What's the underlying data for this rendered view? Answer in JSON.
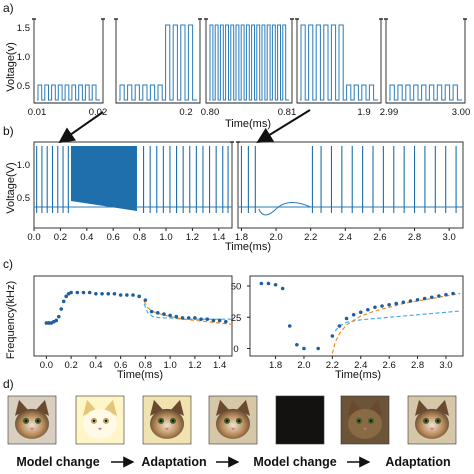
{
  "panel_labels": [
    "a)",
    "b)",
    "c)",
    "d)"
  ],
  "chart_data": [
    {
      "type": "line",
      "id": "a",
      "ylabel": "Voltage(v)",
      "xlabel": "Time(ms)",
      "yticks": [
        "0.5",
        "1.0",
        "1.5"
      ],
      "ylim": [
        0.3,
        1.7
      ],
      "segments": [
        {
          "ticks": [
            "0.01",
            "0.02"
          ],
          "pulse_levels": [
            0.6
          ],
          "pulses": 9
        },
        {
          "ticks": [
            "0.2"
          ],
          "pulse_levels": [
            0.6,
            1.6
          ],
          "pulses": 10
        },
        {
          "ticks": [
            "0.80",
            "0.81"
          ],
          "pulse_levels": [
            1.6
          ],
          "pulses": 15
        },
        {
          "ticks": [
            "1.9"
          ],
          "pulse_levels": [
            1.6,
            0.6
          ],
          "pulses": 10
        },
        {
          "ticks": [
            "2.99",
            "3.00"
          ],
          "pulse_levels": [
            0.6
          ],
          "pulses": 9
        }
      ]
    },
    {
      "type": "line",
      "id": "b",
      "ylabel": "Voltage(V)",
      "xlabel": "Time(ms)",
      "yticks": [
        "0.5",
        "1.0"
      ],
      "left_xticks": [
        "0.0",
        "0.2",
        "0.4",
        "0.6",
        "0.8",
        "1.0",
        "1.2",
        "1.4"
      ],
      "right_xticks": [
        "1.8",
        "2.0",
        "2.2",
        "2.4",
        "2.6",
        "2.8",
        "3.0"
      ],
      "left_range": [
        0.0,
        1.5
      ],
      "right_range": [
        1.78,
        3.08
      ],
      "left_spikes": [
        0.02,
        0.06,
        0.1,
        0.14,
        0.18,
        0.22,
        0.26,
        0.83,
        0.88,
        0.93,
        0.98,
        1.03,
        1.08,
        1.13,
        1.18,
        1.23,
        1.28,
        1.33,
        1.38,
        1.43,
        1.47
      ],
      "dense_burst": [
        0.28,
        0.78
      ],
      "right_spikes": [
        1.8,
        1.84,
        1.88,
        2.21,
        2.26,
        2.32,
        2.38,
        2.44,
        2.5,
        2.56,
        2.62,
        2.68,
        2.74,
        2.8,
        2.86,
        2.92,
        2.98,
        3.04
      ]
    },
    {
      "type": "scatter",
      "id": "c-left",
      "ylabel": "Frequency(kHz)",
      "xlabel": "Time(ms)",
      "xticks": [
        "0.0",
        "0.2",
        "0.4",
        "0.6",
        "0.8",
        "1.0",
        "1.2",
        "1.4"
      ],
      "xlim": [
        -0.1,
        1.5
      ],
      "ylim": [
        -5,
        58
      ],
      "points": [
        [
          0.0,
          21
        ],
        [
          0.02,
          21
        ],
        [
          0.04,
          21
        ],
        [
          0.06,
          22
        ],
        [
          0.08,
          23
        ],
        [
          0.1,
          26
        ],
        [
          0.12,
          32
        ],
        [
          0.14,
          38
        ],
        [
          0.16,
          42
        ],
        [
          0.18,
          44
        ],
        [
          0.2,
          45
        ],
        [
          0.25,
          45
        ],
        [
          0.3,
          45
        ],
        [
          0.35,
          45
        ],
        [
          0.4,
          44
        ],
        [
          0.45,
          44
        ],
        [
          0.5,
          44
        ],
        [
          0.55,
          44
        ],
        [
          0.6,
          43
        ],
        [
          0.65,
          43
        ],
        [
          0.7,
          43
        ],
        [
          0.75,
          42
        ],
        [
          0.8,
          39
        ],
        [
          0.85,
          30
        ],
        [
          0.9,
          29
        ],
        [
          0.95,
          28
        ],
        [
          1.0,
          27
        ],
        [
          1.05,
          26
        ],
        [
          1.1,
          25
        ],
        [
          1.15,
          25
        ],
        [
          1.2,
          25
        ],
        [
          1.25,
          24
        ],
        [
          1.3,
          24
        ],
        [
          1.35,
          23
        ],
        [
          1.4,
          23
        ],
        [
          1.45,
          22
        ]
      ],
      "fit_orange": [
        [
          0.79,
          38
        ],
        [
          0.82,
          33
        ],
        [
          0.86,
          30
        ],
        [
          0.92,
          28
        ],
        [
          1.0,
          26
        ],
        [
          1.1,
          24
        ],
        [
          1.2,
          23
        ],
        [
          1.3,
          22
        ],
        [
          1.4,
          21
        ],
        [
          1.5,
          20
        ]
      ],
      "fit_blue": [
        [
          0.79,
          36
        ],
        [
          0.82,
          29
        ],
        [
          0.86,
          26
        ],
        [
          0.92,
          25
        ],
        [
          1.0,
          25
        ],
        [
          1.1,
          24
        ],
        [
          1.2,
          24
        ],
        [
          1.3,
          24
        ],
        [
          1.4,
          24
        ],
        [
          1.5,
          24
        ]
      ]
    },
    {
      "type": "scatter",
      "id": "c-right",
      "yticks": [
        "0",
        "25",
        "50"
      ],
      "xticks": [
        "1.8",
        "2.0",
        "2.2",
        "2.4",
        "2.6",
        "2.8",
        "3.0"
      ],
      "xlabel": "Time(ms)",
      "xlim": [
        1.62,
        3.12
      ],
      "ylim": [
        -6,
        58
      ],
      "points": [
        [
          1.7,
          52
        ],
        [
          1.75,
          52
        ],
        [
          1.8,
          51
        ],
        [
          1.85,
          48
        ],
        [
          1.9,
          18
        ],
        [
          1.95,
          3
        ],
        [
          2.0,
          0
        ],
        [
          2.1,
          0
        ],
        [
          2.2,
          10
        ],
        [
          2.25,
          18
        ],
        [
          2.3,
          24
        ],
        [
          2.35,
          27
        ],
        [
          2.4,
          29
        ],
        [
          2.45,
          31
        ],
        [
          2.5,
          33
        ],
        [
          2.55,
          34
        ],
        [
          2.6,
          35
        ],
        [
          2.65,
          36
        ],
        [
          2.7,
          37
        ],
        [
          2.75,
          38
        ],
        [
          2.8,
          39
        ],
        [
          2.85,
          40
        ],
        [
          2.9,
          41
        ],
        [
          2.95,
          42
        ],
        [
          3.0,
          43
        ],
        [
          3.05,
          44
        ]
      ],
      "fit_orange": [
        [
          2.2,
          -4
        ],
        [
          2.22,
          5
        ],
        [
          2.25,
          12
        ],
        [
          2.3,
          19
        ],
        [
          2.4,
          26
        ],
        [
          2.5,
          30
        ],
        [
          2.6,
          33
        ],
        [
          2.7,
          36
        ],
        [
          2.8,
          38
        ],
        [
          2.9,
          40
        ],
        [
          3.0,
          42
        ],
        [
          3.1,
          44
        ]
      ],
      "fit_blue": [
        [
          2.22,
          14
        ],
        [
          2.25,
          18
        ],
        [
          2.3,
          21
        ],
        [
          2.4,
          23
        ],
        [
          2.5,
          24
        ],
        [
          2.6,
          25
        ],
        [
          2.7,
          26
        ],
        [
          2.8,
          27
        ],
        [
          2.9,
          28
        ],
        [
          3.0,
          29
        ],
        [
          3.1,
          30
        ]
      ]
    }
  ],
  "panel_d": {
    "tiles": [
      "original",
      "bright",
      "bright-adapted",
      "restored",
      "dark",
      "dark-adapted",
      "restored"
    ],
    "captions": [
      "Model change",
      "Adaptation",
      "Model change",
      "Adaptation"
    ]
  }
}
